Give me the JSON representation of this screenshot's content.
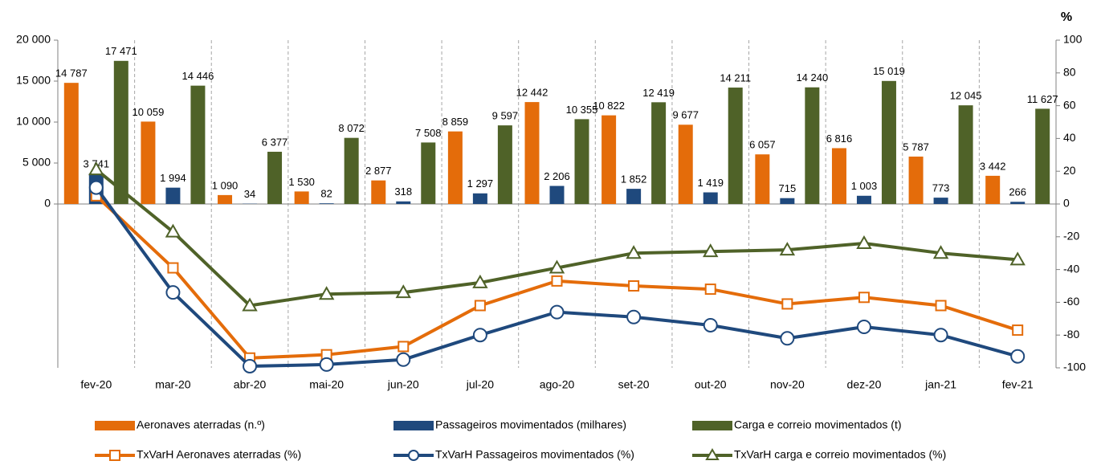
{
  "chart_data": {
    "type": "combo",
    "y2_label": "%",
    "categories": [
      "fev-20",
      "mar-20",
      "abr-20",
      "mai-20",
      "jun-20",
      "jul-20",
      "ago-20",
      "set-20",
      "out-20",
      "nov-20",
      "dez-20",
      "jan-21",
      "fev-21"
    ],
    "ylim": [
      -20000,
      20000
    ],
    "yticks": [
      0,
      {
        "value": 5000,
        "label": "5 000"
      },
      {
        "value": 10000,
        "label": "10 000"
      },
      {
        "value": 15000,
        "label": "15 000"
      },
      {
        "value": 20000,
        "label": "20 000"
      }
    ],
    "y2lim": [
      -100,
      100
    ],
    "y2ticks": [
      -100,
      -80,
      -60,
      -40,
      -20,
      0,
      20,
      40,
      60,
      80,
      100
    ],
    "series": [
      {
        "name": "Aeronaves aterradas (n.º)",
        "type": "bar",
        "color": "#e46c0a",
        "values": [
          14787,
          10059,
          1090,
          1530,
          2877,
          8859,
          12442,
          10822,
          9677,
          6057,
          6816,
          5787,
          3442
        ],
        "value_labels": [
          "14 787",
          "10 059",
          "1 090",
          "1 530",
          "2 877",
          "8 859",
          "12 442",
          "10 822",
          "9 677",
          "6 057",
          "6 816",
          "5 787",
          "3 442"
        ]
      },
      {
        "name": "Passageiros movimentados (milhares)",
        "type": "bar",
        "color": "#1f497d",
        "values": [
          3741,
          1994,
          34,
          82,
          318,
          1297,
          2206,
          1852,
          1419,
          715,
          1003,
          773,
          266
        ],
        "value_labels": [
          "3 741",
          "1 994",
          "34",
          "82",
          "318",
          "1 297",
          "2 206",
          "1 852",
          "1 419",
          "715",
          "1 003",
          "773",
          "266"
        ]
      },
      {
        "name": "Carga e correio movimentados (t)",
        "type": "bar",
        "color": "#4f6228",
        "values": [
          17471,
          14446,
          6377,
          8072,
          7508,
          9597,
          10355,
          12419,
          14211,
          14240,
          15019,
          12045,
          11627
        ],
        "value_labels": [
          "17 471",
          "14 446",
          "6 377",
          "8 072",
          "7 508",
          "9 597",
          "10 355",
          "12 419",
          "14 211",
          "14 240",
          "15 019",
          "12 045",
          "11 627"
        ]
      },
      {
        "name": "TxVarH Aeronaves aterradas (%)",
        "type": "line",
        "axis": "y2",
        "marker": "square",
        "color": "#e46c0a",
        "values": [
          5,
          -39,
          -94,
          -92,
          -87,
          -62,
          -47,
          -50,
          -52,
          -61,
          -57,
          -62,
          -77
        ]
      },
      {
        "name": "TxVarH Passageiros movimentados (%)",
        "type": "line",
        "axis": "y2",
        "marker": "circle",
        "color": "#1f497d",
        "values": [
          10,
          -54,
          -99,
          -98,
          -95,
          -80,
          -66,
          -69,
          -74,
          -82,
          -75,
          -80,
          -93
        ]
      },
      {
        "name": "TxVarH carga e correio movimentados (%)",
        "type": "line",
        "axis": "y2",
        "marker": "triangle",
        "color": "#4f6228",
        "values": [
          21,
          -17,
          -62,
          -55,
          -54,
          -48,
          -39,
          -30,
          -29,
          -28,
          -24,
          -30,
          -34
        ]
      }
    ]
  }
}
